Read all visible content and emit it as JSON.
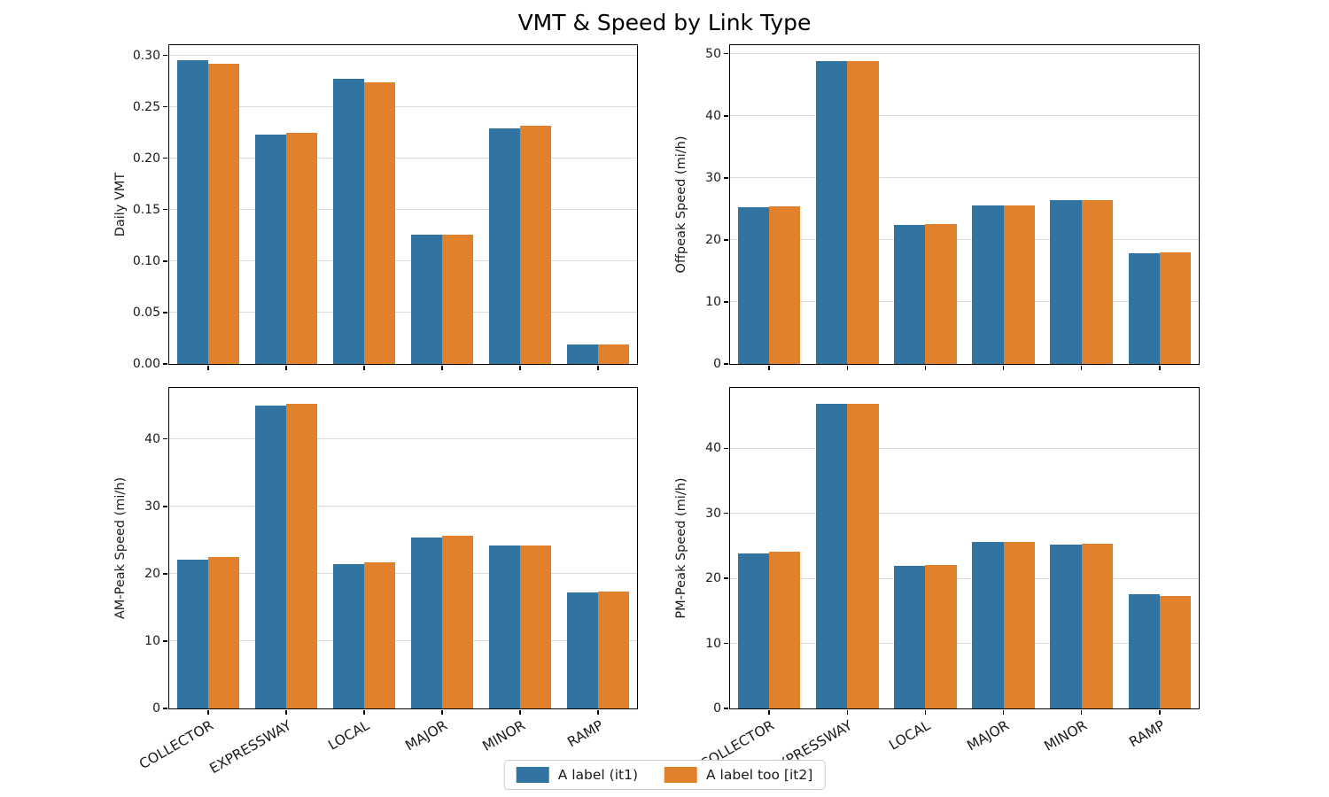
{
  "title": "VMT & Speed by Link Type",
  "categories": [
    "COLLECTOR",
    "EXPRESSWAY",
    "LOCAL",
    "MAJOR",
    "MINOR",
    "RAMP"
  ],
  "legend": {
    "position": "lower-center-of-figure",
    "items": [
      {
        "label": "A label (it1)",
        "color": "#3274a1"
      },
      {
        "label": "A label too [it2]",
        "color": "#e1812c"
      }
    ]
  },
  "colors": {
    "series1": "#3274a1",
    "series2": "#e1812c",
    "grid": "#dcdcdc",
    "spine": "#000000",
    "text": "#1a1a1a"
  },
  "chart_data": [
    {
      "type": "bar",
      "subplot": "top-left",
      "ylabel": "Daily VMT",
      "xlabel": "",
      "grid": "y",
      "show_xticklabels": false,
      "categories": [
        "COLLECTOR",
        "EXPRESSWAY",
        "LOCAL",
        "MAJOR",
        "MINOR",
        "RAMP"
      ],
      "series": [
        {
          "name": "A label (it1)",
          "values": [
            0.295,
            0.223,
            0.277,
            0.126,
            0.229,
            0.019
          ]
        },
        {
          "name": "A label too [it2]",
          "values": [
            0.292,
            0.225,
            0.274,
            0.126,
            0.232,
            0.019
          ]
        }
      ],
      "ylim": [
        0,
        0.31
      ],
      "yticks": {
        "values": [
          0,
          0.05,
          0.1,
          0.15,
          0.2,
          0.25,
          0.3
        ],
        "labels": [
          "0.00",
          "0.05",
          "0.10",
          "0.15",
          "0.20",
          "0.25",
          "0.30"
        ]
      }
    },
    {
      "type": "bar",
      "subplot": "top-right",
      "ylabel": "Offpeak Speed (mi/h)",
      "xlabel": "",
      "grid": "y",
      "show_xticklabels": false,
      "categories": [
        "COLLECTOR",
        "EXPRESSWAY",
        "LOCAL",
        "MAJOR",
        "MINOR",
        "RAMP"
      ],
      "series": [
        {
          "name": "A label (it1)",
          "values": [
            25.3,
            48.9,
            22.4,
            25.6,
            26.4,
            17.9
          ]
        },
        {
          "name": "A label too [it2]",
          "values": [
            25.4,
            48.9,
            22.6,
            25.6,
            26.4,
            18.0
          ]
        }
      ],
      "ylim": [
        0,
        51.4
      ],
      "yticks": {
        "values": [
          0,
          10,
          20,
          30,
          40,
          50
        ],
        "labels": [
          "0",
          "10",
          "20",
          "30",
          "40",
          "50"
        ]
      }
    },
    {
      "type": "bar",
      "subplot": "bottom-left",
      "ylabel": "AM-Peak Speed (mi/h)",
      "xlabel": "",
      "grid": "y",
      "show_xticklabels": true,
      "categories": [
        "COLLECTOR",
        "EXPRESSWAY",
        "LOCAL",
        "MAJOR",
        "MINOR",
        "RAMP"
      ],
      "series": [
        {
          "name": "A label (it1)",
          "values": [
            22.1,
            45.0,
            21.4,
            25.4,
            24.2,
            17.2
          ]
        },
        {
          "name": "A label too [it2]",
          "values": [
            22.5,
            45.3,
            21.7,
            25.6,
            24.2,
            17.3
          ]
        }
      ],
      "ylim": [
        0,
        47.6
      ],
      "yticks": {
        "values": [
          0,
          10,
          20,
          30,
          40
        ],
        "labels": [
          "0",
          "10",
          "20",
          "30",
          "40"
        ]
      }
    },
    {
      "type": "bar",
      "subplot": "bottom-right",
      "ylabel": "PM-Peak Speed (mi/h)",
      "xlabel": "",
      "grid": "y",
      "show_xticklabels": true,
      "categories": [
        "COLLECTOR",
        "EXPRESSWAY",
        "LOCAL",
        "MAJOR",
        "MINOR",
        "RAMP"
      ],
      "series": [
        {
          "name": "A label (it1)",
          "values": [
            23.9,
            46.9,
            21.9,
            25.6,
            25.2,
            17.6
          ]
        },
        {
          "name": "A label too [it2]",
          "values": [
            24.1,
            46.9,
            22.0,
            25.6,
            25.4,
            17.3
          ]
        }
      ],
      "ylim": [
        0,
        49.3
      ],
      "yticks": {
        "values": [
          0,
          10,
          20,
          30,
          40
        ],
        "labels": [
          "0",
          "10",
          "20",
          "30",
          "40"
        ]
      }
    }
  ]
}
